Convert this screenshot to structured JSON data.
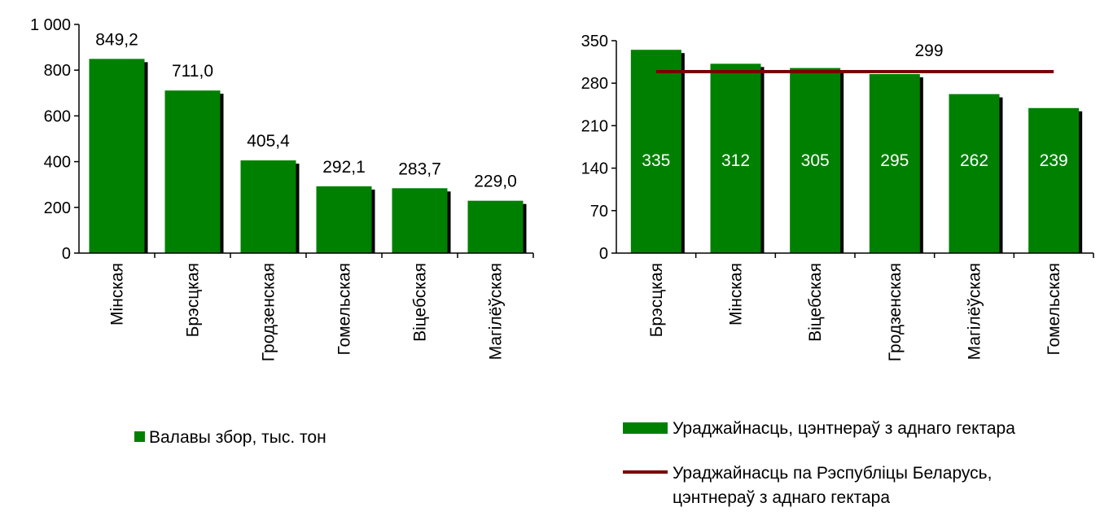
{
  "colors": {
    "bar": "#008000",
    "bar_shadow": "#000000",
    "axis": "#000000",
    "avg_line": "#7a0000",
    "inbar_text": "#ffffff",
    "text": "#000000"
  },
  "chart_data": [
    {
      "type": "bar",
      "categories": [
        "Мінская",
        "Брэсцкая",
        "Гродзенская",
        "Гомельская",
        "Віцебская",
        "Магілёўская"
      ],
      "series": [
        {
          "name": "Валавы збор, тыс. тон",
          "values": [
            849.2,
            711.0,
            405.4,
            292.1,
            283.7,
            229.0
          ]
        }
      ],
      "data_labels": [
        "849,2",
        "711,0",
        "405,4",
        "292,1",
        "283,7",
        "229,0"
      ],
      "ylim": [
        0,
        1000
      ],
      "yticks": [
        0,
        200,
        400,
        600,
        800,
        1000
      ],
      "ytick_labels": [
        "0",
        "200",
        "400",
        "600",
        "800",
        "1 000"
      ],
      "legend": {
        "position": "bottom",
        "entries": [
          "Валавы збор, тыс. тон"
        ]
      }
    },
    {
      "type": "bar",
      "categories": [
        "Брэсцкая",
        "Мінская",
        "Віцебская",
        "Гродзенская",
        "Магілёўская",
        "Гомельская"
      ],
      "series": [
        {
          "name": "Ураджайнасць, цэнтнераў з аднаго гектара",
          "values": [
            335,
            312,
            305,
            295,
            262,
            239
          ]
        },
        {
          "name": "Ураджайнасць па Рэспубліцы Беларусь, цэнтнераў з аднаго гектара",
          "type": "line",
          "value": 299
        }
      ],
      "data_labels": [
        "335",
        "312",
        "305",
        "295",
        "262",
        "239"
      ],
      "line_label": "299",
      "ylim": [
        0,
        350
      ],
      "yticks": [
        0,
        70,
        140,
        210,
        280,
        350
      ],
      "ytick_labels": [
        "0",
        "70",
        "140",
        "210",
        "280",
        "350"
      ],
      "legend": {
        "position": "bottom",
        "entries": [
          {
            "lines": [
              "Ураджайнасць, цэнтнераў з аднаго гектара"
            ]
          },
          {
            "lines": [
              "Ураджайнасць па Рэспубліцы Беларусь,",
              "цэнтнераў з аднаго гектара"
            ]
          }
        ]
      }
    }
  ]
}
